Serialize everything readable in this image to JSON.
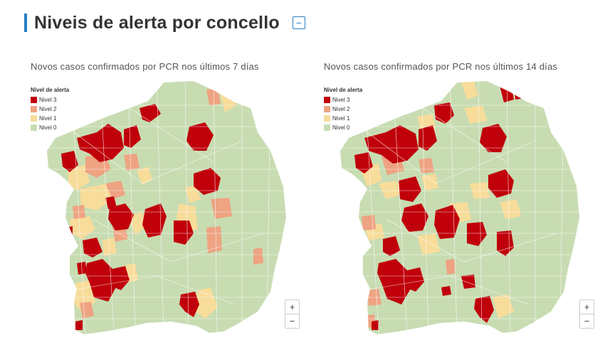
{
  "header": {
    "title": "Niveis de alerta por concello",
    "collapse_icon": "minus-square-icon",
    "collapse_symbol": "−"
  },
  "colors": {
    "nivel3": "#c0000a",
    "nivel2": "#eea382",
    "nivel1": "#f7dc9a",
    "nivel0": "#c8dcb2",
    "accent": "#2a7fc1"
  },
  "legend": {
    "title": "Nivel de alerta",
    "items": [
      {
        "label": "Nivel 3",
        "color": "#c0000a"
      },
      {
        "label": "Nivel 2",
        "color": "#eea382"
      },
      {
        "label": "Nivel 1",
        "color": "#f7dc9a"
      },
      {
        "label": "Nivel 0",
        "color": "#c8dcb2"
      }
    ]
  },
  "maps": [
    {
      "subtitle": "Novos casos confirmados por PCR nos últimos 7 días"
    },
    {
      "subtitle": "Novos casos confirmados por PCR nos últimos 14 días"
    }
  ],
  "zoom": {
    "in_label": "+",
    "out_label": "−"
  }
}
